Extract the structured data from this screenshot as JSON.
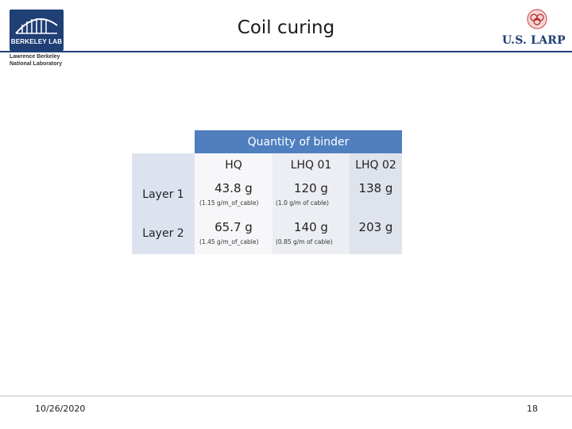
{
  "header": {
    "title": "Coil curing",
    "left_logo": {
      "name": "BERKELEY LAB",
      "caption": [
        "Lawrence Berkeley",
        "National Laboratory"
      ]
    },
    "right_logo": {
      "name": "U.S. LARP"
    }
  },
  "table": {
    "group_header": "Quantity of binder",
    "columns": [
      "HQ",
      "LHQ 01",
      "LHQ 02"
    ],
    "rows": [
      {
        "label": "Layer 1",
        "cells": [
          {
            "value": "43.8 g",
            "note": "(1.15 g/m_of_cable)"
          },
          {
            "value": "120 g",
            "note": "(1.0 g/m of cable)"
          },
          {
            "value": "138 g",
            "note": ""
          }
        ]
      },
      {
        "label": "Layer 2",
        "cells": [
          {
            "value": "65.7 g",
            "note": "(1.45 g/m_of_cable)"
          },
          {
            "value": "140 g",
            "note": "(0.85 g/m of cable)"
          },
          {
            "value": "203 g",
            "note": ""
          }
        ]
      }
    ]
  },
  "footer": {
    "date": "10/26/2020",
    "page": "18"
  },
  "colors": {
    "brand_blue": "#1f3f75",
    "table_header": "#4f7fbf"
  }
}
